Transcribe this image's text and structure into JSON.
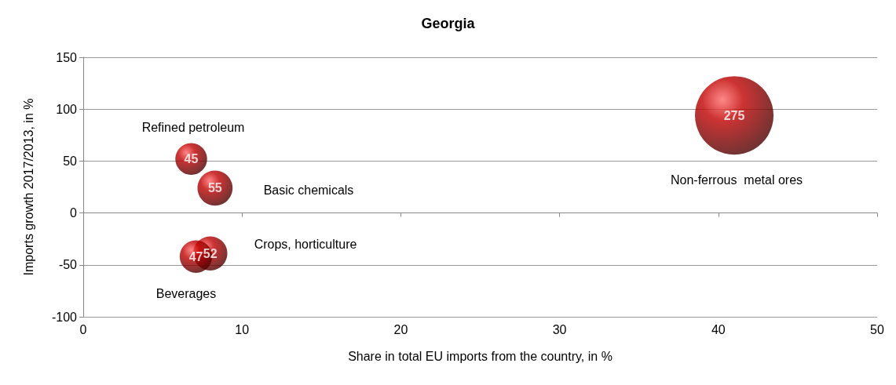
{
  "chart_data": {
    "type": "bubble",
    "title": "Georgia",
    "xlabel": "Share in total EU imports from the country, in %",
    "ylabel": "Imports growth 2017/2013, in %",
    "x": [
      41.0,
      6.8,
      8.3,
      8.0,
      7.1
    ],
    "series": [
      {
        "color": "#c00000",
        "values": [
          94,
          52,
          24,
          -39,
          -42
        ],
        "sizes": [
          275,
          45,
          55,
          52,
          47
        ],
        "value_labels": [
          "275",
          "45",
          "55",
          "52",
          "47"
        ]
      }
    ],
    "xlim": [
      0,
      50
    ],
    "xticks": [
      0,
      10,
      20,
      30,
      40,
      50
    ],
    "ylim": [
      -100,
      150
    ],
    "yticks": [
      -100,
      -50,
      0,
      50,
      100,
      150
    ],
    "grid": "y",
    "marker": "circle",
    "annotations": [
      "Non-ferrous  metal ores",
      "Refined petroleum",
      "Basic chemicals",
      "Crops, horticulture",
      "Beverages"
    ]
  }
}
